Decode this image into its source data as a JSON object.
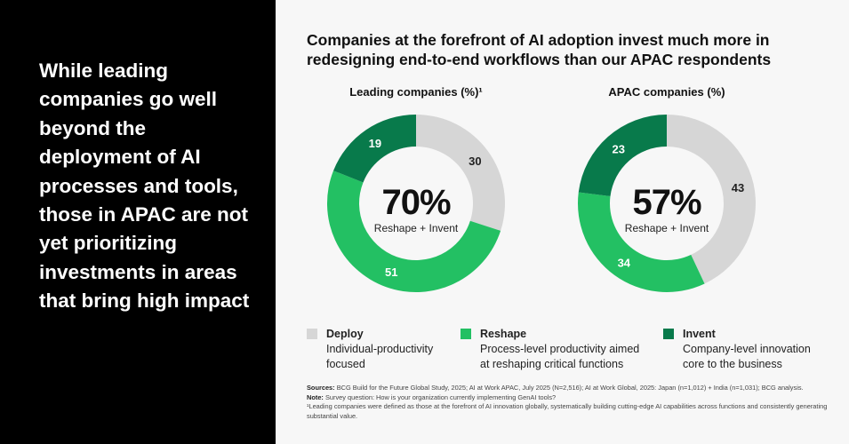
{
  "headline": "While leading companies go well beyond the deployment of AI processes and tools, those in APAC are not yet prioritizing investments in areas that bring high impact",
  "colors": {
    "deploy": "#d6d6d6",
    "reshape": "#23c063",
    "invent": "#087a4b"
  },
  "chart_data": [
    {
      "type": "pie",
      "title": "Leading companies (%)¹",
      "categories": [
        "Deploy",
        "Reshape",
        "Invent"
      ],
      "values": [
        30,
        51,
        19
      ],
      "center_value": "70%",
      "center_label": "Reshape + Invent"
    },
    {
      "type": "pie",
      "title": "APAC companies (%)",
      "categories": [
        "Deploy",
        "Reshape",
        "Invent"
      ],
      "values": [
        43,
        34,
        23
      ],
      "center_value": "57%",
      "center_label": "Reshape + Invent"
    }
  ],
  "chart_title": "Companies at the forefront of AI adoption invest much more in redesigning end-to-end workflows than our APAC respondents",
  "legend": [
    {
      "label": "Deploy",
      "desc": "Individual-productivity focused"
    },
    {
      "label": "Reshape",
      "desc": "Process-level productivity aimed at reshaping critical functions"
    },
    {
      "label": "Invent",
      "desc": "Company-level innovation core to the business"
    }
  ],
  "notes": {
    "sources_label": "Sources:",
    "sources": "BCG Build for the Future Global Study, 2025; AI at Work APAC, July 2025 (N=2,516); AI at Work Global, 2025: Japan (n=1,012) + India (n=1,031); BCG analysis.",
    "note_label": "Note:",
    "note": "Survey question: How is your organization currently implementing GenAI tools?",
    "footnote": "¹Leading companies were defined as those at the forefront of AI innovation globally, systematically building cutting-edge AI capabilities across functions and consistently generating substantial value."
  }
}
